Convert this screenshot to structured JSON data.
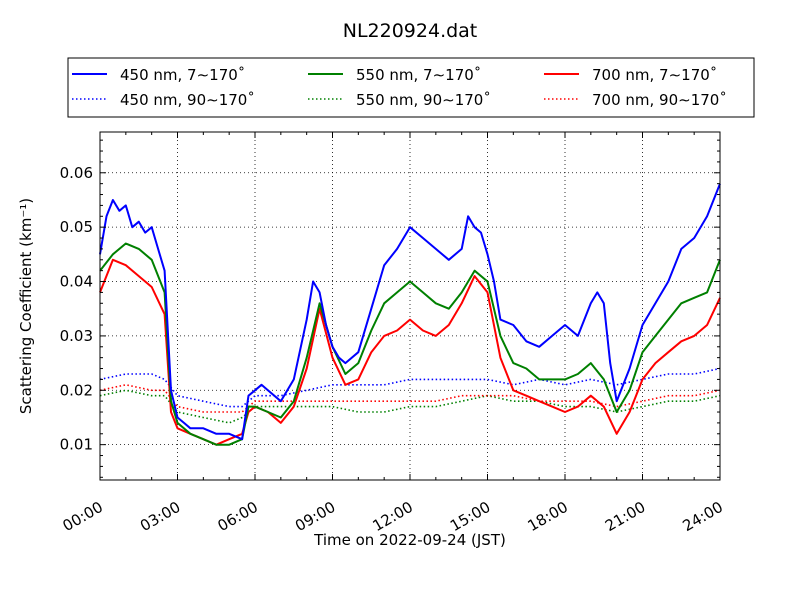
{
  "chart_data": {
    "type": "line",
    "title": "NL220924.dat",
    "xlabel": "Time on 2022-09-24 (JST)",
    "ylabel": "Scattering Coefficient (km⁻¹)",
    "x_unit": "hours",
    "xlim": [
      0,
      24
    ],
    "ylim": [
      0.0035,
      0.0675
    ],
    "x_ticks": [
      0,
      3,
      6,
      9,
      12,
      15,
      18,
      21,
      24
    ],
    "x_tick_labels": [
      "00:00",
      "03:00",
      "06:00",
      "09:00",
      "12:00",
      "15:00",
      "18:00",
      "21:00",
      "24:00"
    ],
    "y_ticks": [
      0.01,
      0.02,
      0.03,
      0.04,
      0.05,
      0.06
    ],
    "y_tick_labels": [
      "0.01",
      "0.02",
      "0.03",
      "0.04",
      "0.05",
      "0.06"
    ],
    "grid": true,
    "grid_style": "dotted",
    "legend_position": "top, above plot, 3 columns",
    "series": [
      {
        "name": "450 nm, 7∼170˚",
        "color": "#0000ff",
        "style": "solid",
        "x": [
          0,
          0.25,
          0.5,
          0.75,
          1,
          1.25,
          1.5,
          1.75,
          2,
          2.25,
          2.5,
          2.75,
          3,
          3.25,
          3.5,
          4,
          4.5,
          5,
          5.5,
          5.75,
          6,
          6.25,
          6.5,
          7,
          7.5,
          8,
          8.25,
          8.5,
          8.75,
          9,
          9.25,
          9.5,
          10,
          10.5,
          11,
          11.5,
          12,
          12.5,
          13,
          13.5,
          14,
          14.25,
          14.5,
          14.75,
          15,
          15.25,
          15.5,
          16,
          16.5,
          17,
          17.5,
          18,
          18.5,
          19,
          19.25,
          19.5,
          19.75,
          20,
          20.5,
          21,
          21.5,
          22,
          22.5,
          23,
          23.5,
          24
        ],
        "y": [
          0.045,
          0.052,
          0.055,
          0.053,
          0.054,
          0.05,
          0.051,
          0.049,
          0.05,
          0.046,
          0.042,
          0.02,
          0.015,
          0.014,
          0.013,
          0.013,
          0.012,
          0.012,
          0.011,
          0.019,
          0.02,
          0.021,
          0.02,
          0.018,
          0.022,
          0.033,
          0.04,
          0.038,
          0.032,
          0.028,
          0.026,
          0.025,
          0.027,
          0.035,
          0.043,
          0.046,
          0.05,
          0.048,
          0.046,
          0.044,
          0.046,
          0.052,
          0.05,
          0.049,
          0.045,
          0.04,
          0.033,
          0.032,
          0.029,
          0.028,
          0.03,
          0.032,
          0.03,
          0.036,
          0.038,
          0.036,
          0.025,
          0.018,
          0.024,
          0.032,
          0.036,
          0.04,
          0.046,
          0.048,
          0.052,
          0.058
        ]
      },
      {
        "name": "450 nm, 90∼170˚",
        "color": "#0000ff",
        "style": "dotted",
        "x": [
          0,
          1,
          2,
          2.5,
          3,
          4,
          5,
          5.5,
          6,
          7,
          8,
          9,
          10,
          11,
          12,
          13,
          14,
          15,
          16,
          17,
          18,
          19,
          20,
          21,
          22,
          23,
          24
        ],
        "y": [
          0.022,
          0.023,
          0.023,
          0.022,
          0.019,
          0.018,
          0.017,
          0.017,
          0.019,
          0.019,
          0.02,
          0.021,
          0.021,
          0.021,
          0.022,
          0.022,
          0.022,
          0.022,
          0.021,
          0.022,
          0.021,
          0.022,
          0.021,
          0.022,
          0.023,
          0.023,
          0.024
        ]
      },
      {
        "name": "550 nm, 7∼170˚",
        "color": "#008000",
        "style": "solid",
        "x": [
          0,
          0.5,
          1,
          1.5,
          2,
          2.5,
          2.75,
          3,
          3.5,
          4,
          4.5,
          5,
          5.5,
          5.75,
          6,
          6.5,
          7,
          7.5,
          8,
          8.5,
          9,
          9.5,
          10,
          10.5,
          11,
          11.5,
          12,
          12.5,
          13,
          13.5,
          14,
          14.5,
          15,
          15.5,
          16,
          16.5,
          17,
          17.5,
          18,
          18.5,
          19,
          19.5,
          20,
          20.5,
          21,
          21.5,
          22,
          22.5,
          23,
          23.5,
          24
        ],
        "y": [
          0.042,
          0.045,
          0.047,
          0.046,
          0.044,
          0.038,
          0.018,
          0.014,
          0.012,
          0.011,
          0.01,
          0.01,
          0.011,
          0.017,
          0.017,
          0.016,
          0.015,
          0.018,
          0.026,
          0.036,
          0.028,
          0.023,
          0.025,
          0.031,
          0.036,
          0.038,
          0.04,
          0.038,
          0.036,
          0.035,
          0.038,
          0.042,
          0.04,
          0.03,
          0.025,
          0.024,
          0.022,
          0.022,
          0.022,
          0.023,
          0.025,
          0.022,
          0.016,
          0.02,
          0.027,
          0.03,
          0.033,
          0.036,
          0.037,
          0.038,
          0.044
        ]
      },
      {
        "name": "550 nm, 90∼170˚",
        "color": "#008000",
        "style": "dotted",
        "x": [
          0,
          1,
          2,
          2.5,
          3,
          4,
          5,
          5.5,
          6,
          7,
          8,
          9,
          10,
          11,
          12,
          13,
          14,
          15,
          16,
          17,
          18,
          19,
          20,
          21,
          22,
          23,
          24
        ],
        "y": [
          0.019,
          0.02,
          0.019,
          0.019,
          0.016,
          0.015,
          0.014,
          0.015,
          0.017,
          0.017,
          0.017,
          0.017,
          0.016,
          0.016,
          0.017,
          0.017,
          0.018,
          0.019,
          0.018,
          0.018,
          0.017,
          0.017,
          0.016,
          0.017,
          0.018,
          0.018,
          0.019
        ]
      },
      {
        "name": "700 nm, 7∼170˚",
        "color": "#ff0000",
        "style": "solid",
        "x": [
          0,
          0.5,
          1,
          1.5,
          2,
          2.5,
          2.75,
          3,
          3.5,
          4,
          4.5,
          5,
          5.5,
          5.75,
          6,
          6.5,
          7,
          7.5,
          8,
          8.5,
          9,
          9.5,
          10,
          10.5,
          11,
          11.5,
          12,
          12.5,
          13,
          13.5,
          14,
          14.5,
          15,
          15.5,
          16,
          16.5,
          17,
          17.5,
          18,
          18.5,
          19,
          19.5,
          20,
          20.5,
          21,
          21.5,
          22,
          22.5,
          23,
          23.5,
          24
        ],
        "y": [
          0.038,
          0.044,
          0.043,
          0.041,
          0.039,
          0.034,
          0.016,
          0.013,
          0.012,
          0.011,
          0.01,
          0.011,
          0.012,
          0.016,
          0.017,
          0.016,
          0.014,
          0.017,
          0.024,
          0.035,
          0.026,
          0.021,
          0.022,
          0.027,
          0.03,
          0.031,
          0.033,
          0.031,
          0.03,
          0.032,
          0.036,
          0.041,
          0.038,
          0.026,
          0.02,
          0.019,
          0.018,
          0.017,
          0.016,
          0.017,
          0.019,
          0.017,
          0.012,
          0.016,
          0.022,
          0.025,
          0.027,
          0.029,
          0.03,
          0.032,
          0.037
        ]
      },
      {
        "name": "700 nm, 90∼170˚",
        "color": "#ff0000",
        "style": "dotted",
        "x": [
          0,
          1,
          2,
          2.5,
          3,
          4,
          5,
          5.5,
          6,
          7,
          8,
          9,
          10,
          11,
          12,
          13,
          14,
          15,
          16,
          17,
          18,
          19,
          20,
          21,
          22,
          23,
          24
        ],
        "y": [
          0.02,
          0.021,
          0.02,
          0.02,
          0.017,
          0.016,
          0.016,
          0.016,
          0.018,
          0.018,
          0.018,
          0.018,
          0.018,
          0.018,
          0.018,
          0.018,
          0.019,
          0.019,
          0.019,
          0.018,
          0.018,
          0.018,
          0.017,
          0.018,
          0.019,
          0.019,
          0.02
        ]
      }
    ]
  }
}
